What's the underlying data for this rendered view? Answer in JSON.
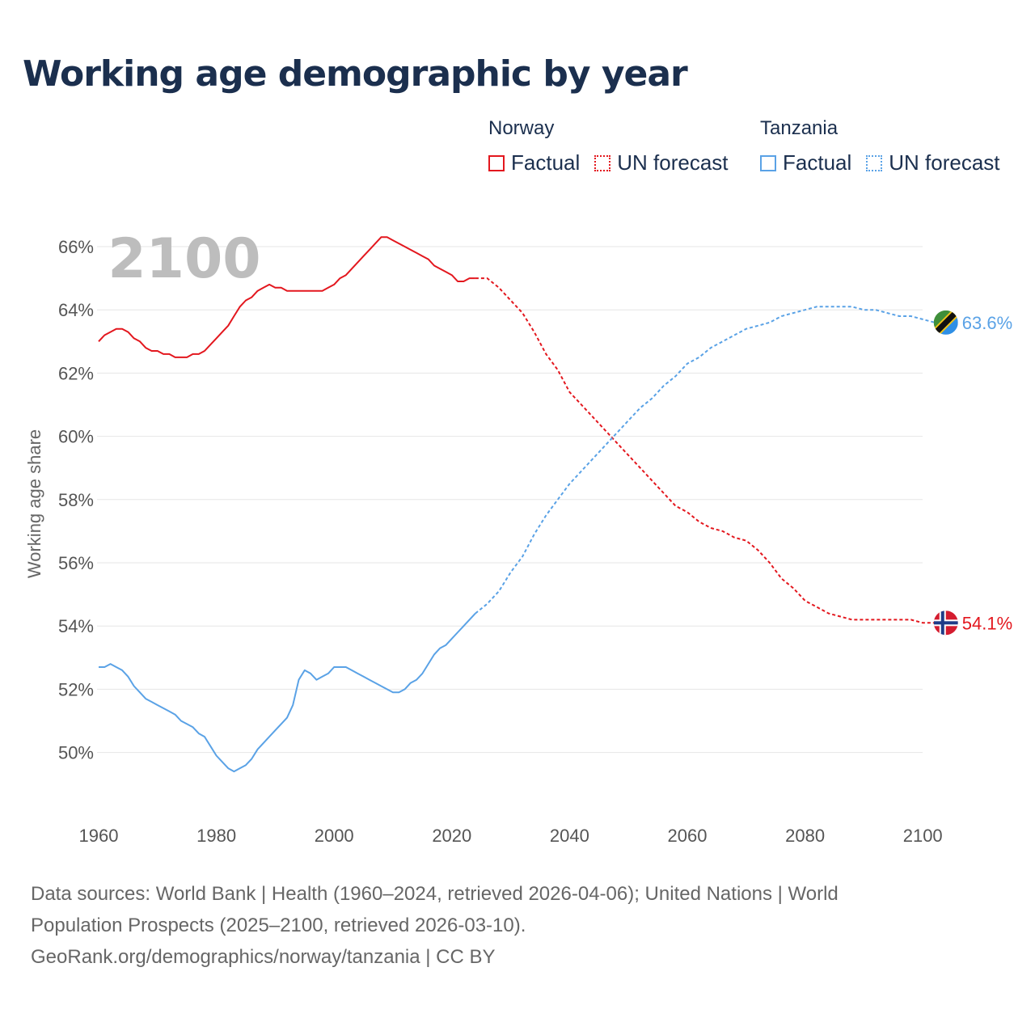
{
  "title": "Working age demographic by year",
  "legend": {
    "groups": [
      {
        "name": "Norway",
        "color": "#e3171e",
        "factual_label": "Factual",
        "forecast_label": "UN forecast"
      },
      {
        "name": "Tanzania",
        "color": "#5aa2e6",
        "factual_label": "Factual",
        "forecast_label": "UN forecast"
      }
    ]
  },
  "source": {
    "line1": "Data sources: World Bank | Health (1960–2024, retrieved 2026-04-06); United Nations | World",
    "line2": "Population Prospects (2025–2100, retrieved 2026-03-10).",
    "line3": "GeoRank.org/demographics/norway/tanzania | CC BY"
  },
  "chart_data": {
    "type": "line",
    "title": "Working age demographic by year",
    "current_year_label": "2100",
    "xlabel": "",
    "ylabel": "Working age share",
    "xlim": [
      1960,
      2104
    ],
    "ylim": [
      48,
      67
    ],
    "x_ticks": [
      1960,
      1980,
      2000,
      2020,
      2040,
      2060,
      2080,
      2100
    ],
    "y_ticks": [
      {
        "value": 50,
        "label": "50%"
      },
      {
        "value": 52,
        "label": "52%"
      },
      {
        "value": 54,
        "label": "54%"
      },
      {
        "value": 56,
        "label": "56%"
      },
      {
        "value": 58,
        "label": "58%"
      },
      {
        "value": 60,
        "label": "60%"
      },
      {
        "value": 62,
        "label": "62%"
      },
      {
        "value": 64,
        "label": "64%"
      },
      {
        "value": 66,
        "label": "66%"
      }
    ],
    "grid": true,
    "series": [
      {
        "name": "Norway",
        "color": "#e3171e",
        "end_label": "54.1%",
        "factual": {
          "x": [
            1960,
            1961,
            1962,
            1963,
            1964,
            1965,
            1966,
            1967,
            1968,
            1969,
            1970,
            1971,
            1972,
            1973,
            1974,
            1975,
            1976,
            1977,
            1978,
            1979,
            1980,
            1981,
            1982,
            1983,
            1984,
            1985,
            1986,
            1987,
            1988,
            1989,
            1990,
            1991,
            1992,
            1993,
            1994,
            1995,
            1996,
            1997,
            1998,
            1999,
            2000,
            2001,
            2002,
            2003,
            2004,
            2005,
            2006,
            2007,
            2008,
            2009,
            2010,
            2011,
            2012,
            2013,
            2014,
            2015,
            2016,
            2017,
            2018,
            2019,
            2020,
            2021,
            2022,
            2023,
            2024
          ],
          "y": [
            63.0,
            63.2,
            63.3,
            63.4,
            63.4,
            63.3,
            63.1,
            63.0,
            62.8,
            62.7,
            62.7,
            62.6,
            62.6,
            62.5,
            62.5,
            62.5,
            62.6,
            62.6,
            62.7,
            62.9,
            63.1,
            63.3,
            63.5,
            63.8,
            64.1,
            64.3,
            64.4,
            64.6,
            64.7,
            64.8,
            64.7,
            64.7,
            64.6,
            64.6,
            64.6,
            64.6,
            64.6,
            64.6,
            64.6,
            64.7,
            64.8,
            65.0,
            65.1,
            65.3,
            65.5,
            65.7,
            65.9,
            66.1,
            66.3,
            66.3,
            66.2,
            66.1,
            66.0,
            65.9,
            65.8,
            65.7,
            65.6,
            65.4,
            65.3,
            65.2,
            65.1,
            64.9,
            64.9,
            65.0,
            65.0
          ]
        },
        "forecast": {
          "x": [
            2024,
            2026,
            2028,
            2030,
            2032,
            2034,
            2036,
            2038,
            2040,
            2042,
            2044,
            2046,
            2048,
            2050,
            2052,
            2054,
            2056,
            2058,
            2060,
            2062,
            2064,
            2066,
            2068,
            2070,
            2072,
            2074,
            2076,
            2078,
            2080,
            2082,
            2084,
            2086,
            2088,
            2090,
            2092,
            2094,
            2096,
            2098,
            2100,
            2102
          ],
          "y": [
            65.0,
            65.0,
            64.7,
            64.3,
            63.9,
            63.3,
            62.6,
            62.1,
            61.4,
            61.0,
            60.6,
            60.2,
            59.8,
            59.4,
            59.0,
            58.6,
            58.2,
            57.8,
            57.6,
            57.3,
            57.1,
            57.0,
            56.8,
            56.7,
            56.4,
            56.0,
            55.5,
            55.2,
            54.8,
            54.6,
            54.4,
            54.3,
            54.2,
            54.2,
            54.2,
            54.2,
            54.2,
            54.2,
            54.1,
            54.1
          ]
        }
      },
      {
        "name": "Tanzania",
        "color": "#5aa2e6",
        "end_label": "63.6%",
        "factual": {
          "x": [
            1960,
            1961,
            1962,
            1963,
            1964,
            1965,
            1966,
            1967,
            1968,
            1969,
            1970,
            1971,
            1972,
            1973,
            1974,
            1975,
            1976,
            1977,
            1978,
            1979,
            1980,
            1981,
            1982,
            1983,
            1984,
            1985,
            1986,
            1987,
            1988,
            1989,
            1990,
            1991,
            1992,
            1993,
            1994,
            1995,
            1996,
            1997,
            1998,
            1999,
            2000,
            2001,
            2002,
            2003,
            2004,
            2005,
            2006,
            2007,
            2008,
            2009,
            2010,
            2011,
            2012,
            2013,
            2014,
            2015,
            2016,
            2017,
            2018,
            2019,
            2020,
            2021,
            2022,
            2023,
            2024
          ],
          "y": [
            52.7,
            52.7,
            52.8,
            52.7,
            52.6,
            52.4,
            52.1,
            51.9,
            51.7,
            51.6,
            51.5,
            51.4,
            51.3,
            51.2,
            51.0,
            50.9,
            50.8,
            50.6,
            50.5,
            50.2,
            49.9,
            49.7,
            49.5,
            49.4,
            49.5,
            49.6,
            49.8,
            50.1,
            50.3,
            50.5,
            50.7,
            50.9,
            51.1,
            51.5,
            52.3,
            52.6,
            52.5,
            52.3,
            52.4,
            52.5,
            52.7,
            52.7,
            52.7,
            52.6,
            52.5,
            52.4,
            52.3,
            52.2,
            52.1,
            52.0,
            51.9,
            51.9,
            52.0,
            52.2,
            52.3,
            52.5,
            52.8,
            53.1,
            53.3,
            53.4,
            53.6,
            53.8,
            54.0,
            54.2,
            54.4
          ]
        },
        "forecast": {
          "x": [
            2024,
            2026,
            2028,
            2030,
            2032,
            2034,
            2036,
            2038,
            2040,
            2042,
            2044,
            2046,
            2048,
            2050,
            2052,
            2054,
            2056,
            2058,
            2060,
            2062,
            2064,
            2066,
            2068,
            2070,
            2072,
            2074,
            2076,
            2078,
            2080,
            2082,
            2084,
            2086,
            2088,
            2090,
            2092,
            2094,
            2096,
            2098,
            2100,
            2102
          ],
          "y": [
            54.4,
            54.7,
            55.1,
            55.7,
            56.2,
            56.9,
            57.5,
            58.0,
            58.5,
            58.9,
            59.3,
            59.7,
            60.1,
            60.5,
            60.9,
            61.2,
            61.6,
            61.9,
            62.3,
            62.5,
            62.8,
            63.0,
            63.2,
            63.4,
            63.5,
            63.6,
            63.8,
            63.9,
            64.0,
            64.1,
            64.1,
            64.1,
            64.1,
            64.0,
            64.0,
            63.9,
            63.8,
            63.8,
            63.7,
            63.6
          ]
        }
      }
    ]
  }
}
